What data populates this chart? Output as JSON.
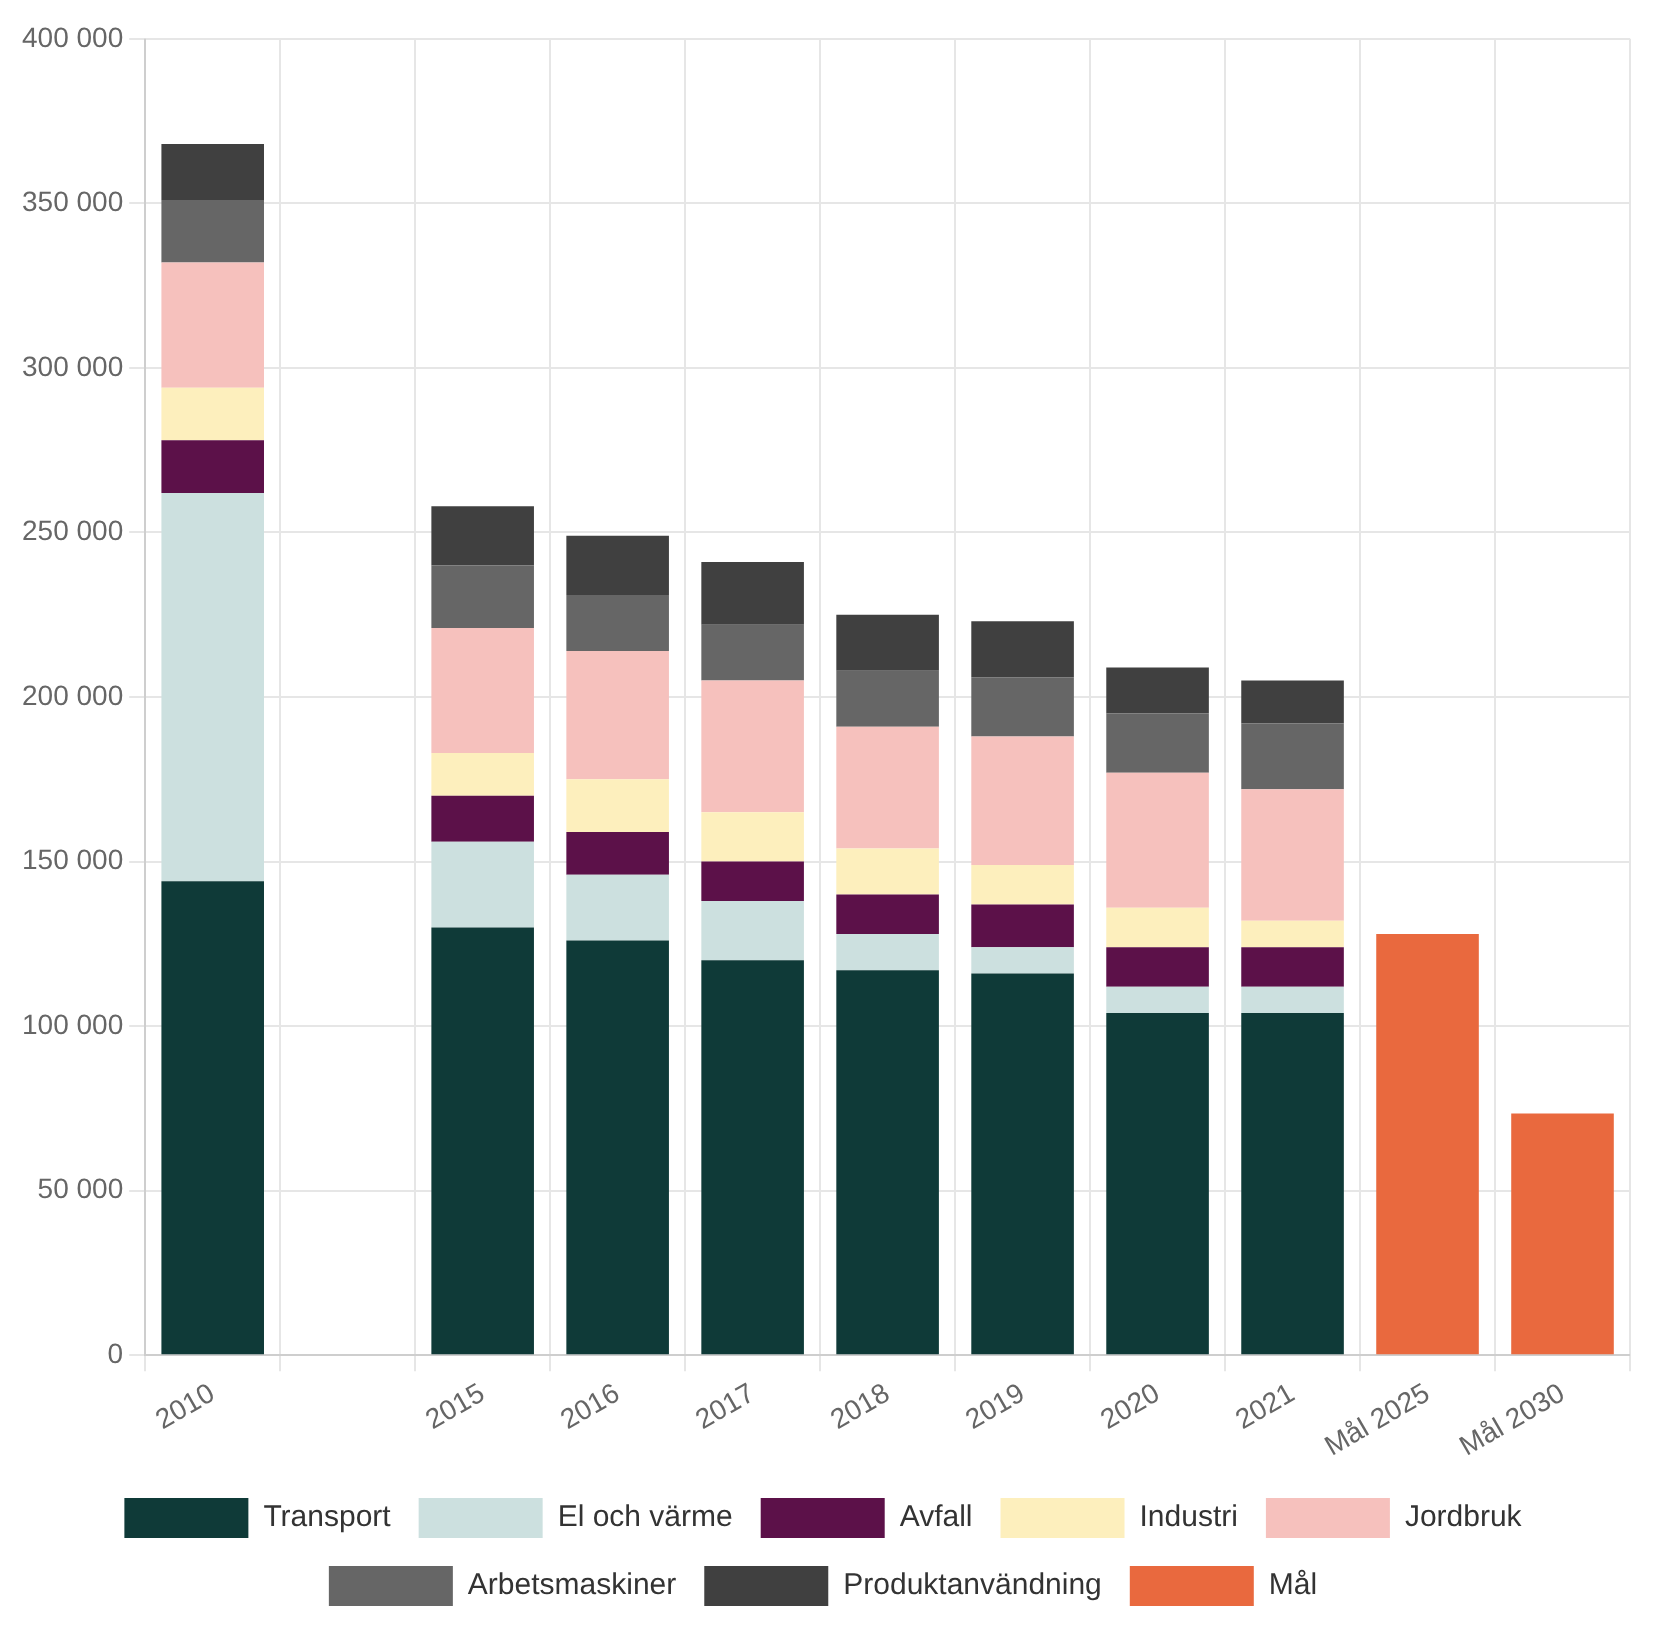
{
  "chart_data": {
    "type": "bar",
    "stacked": true,
    "legend": "bottom",
    "grid": true,
    "categories": [
      "2010",
      null,
      "2015",
      "2016",
      "2017",
      "2018",
      "2019",
      "2020",
      "2021",
      "Mål 2025",
      "Mål 2030"
    ],
    "series": [
      {
        "name": "Transport",
        "color": "#0f3a38",
        "values": [
          144000,
          null,
          130000,
          126000,
          120000,
          117000,
          116000,
          104000,
          104000,
          null,
          null
        ]
      },
      {
        "name": "El och värme",
        "color": "#cce0df",
        "values": [
          118000,
          null,
          26000,
          20000,
          18000,
          11000,
          8000,
          8000,
          8000,
          null,
          null
        ]
      },
      {
        "name": "Avfall",
        "color": "#5c1149",
        "values": [
          16000,
          null,
          14000,
          13000,
          12000,
          12000,
          13000,
          12000,
          12000,
          null,
          null
        ]
      },
      {
        "name": "Industri",
        "color": "#fdefbd",
        "values": [
          16000,
          null,
          13000,
          16000,
          15000,
          14000,
          12000,
          12000,
          8000,
          null,
          null
        ]
      },
      {
        "name": "Jordbruk",
        "color": "#f6c1bd",
        "values": [
          38000,
          null,
          38000,
          39000,
          40000,
          37000,
          39000,
          41000,
          40000,
          null,
          null
        ]
      },
      {
        "name": "Arbetsmaskiner",
        "color": "#666666",
        "values": [
          19000,
          null,
          19000,
          17000,
          17000,
          17000,
          18000,
          18000,
          20000,
          null,
          null
        ]
      },
      {
        "name": "Produktanvändning",
        "color": "#404040",
        "values": [
          17000,
          null,
          18000,
          18000,
          19000,
          17000,
          17000,
          14000,
          13000,
          null,
          null
        ]
      },
      {
        "name": "Mål",
        "color": "#e9693e",
        "values": [
          null,
          null,
          null,
          null,
          null,
          null,
          null,
          null,
          null,
          128000,
          73500
        ]
      }
    ],
    "ylim": [
      0,
      400000
    ],
    "yticks": [
      {
        "value": 0,
        "label": "0"
      },
      {
        "value": 50000,
        "label": "50 000"
      },
      {
        "value": 100000,
        "label": "100 000"
      },
      {
        "value": 150000,
        "label": "150 000"
      },
      {
        "value": 200000,
        "label": "200 000"
      },
      {
        "value": 250000,
        "label": "250 000"
      },
      {
        "value": 300000,
        "label": "300 000"
      },
      {
        "value": 350000,
        "label": "350 000"
      },
      {
        "value": 400000,
        "label": "400 000"
      }
    ]
  }
}
